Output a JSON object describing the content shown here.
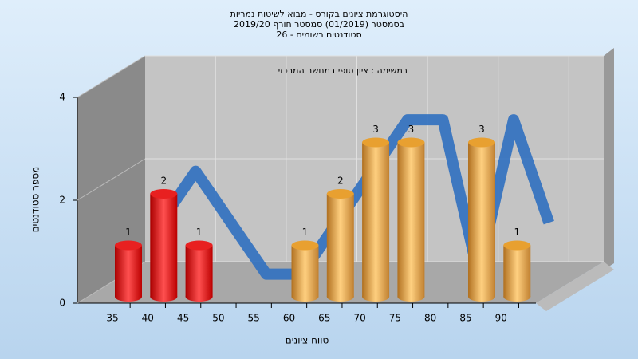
{
  "chart_data": {
    "type": "bar",
    "title": [
      "היסטוגרמת ציונים בקורס - מבוא לשיטות נמריות",
      "בסמסטר  (01/2019)  סמסטר חורף 2019/20",
      "סטודנטים רשומים - 26"
    ],
    "subtitle": "במשימה : ציון סופי במחשב המרכזי",
    "x_label": "טווח ציונים",
    "y_label": "מספר סטודנטים",
    "categories": [
      "35",
      "40",
      "45",
      "50",
      "55",
      "60",
      "65",
      "70",
      "75",
      "80",
      "85",
      "90"
    ],
    "values": [
      1,
      2,
      1,
      0,
      0,
      1,
      2,
      3,
      3,
      0,
      3,
      1
    ],
    "colors": [
      "#e82020",
      "#e82020",
      "#e82020",
      "#e8a030",
      "#e8a030",
      "#e8a030",
      "#e8a030",
      "#e8a030",
      "#e8a030",
      "#e8a030",
      "#e8a030",
      "#e8a030"
    ],
    "ylim": [
      0,
      4
    ],
    "yticks": [
      0,
      2,
      4
    ],
    "grid": true
  }
}
